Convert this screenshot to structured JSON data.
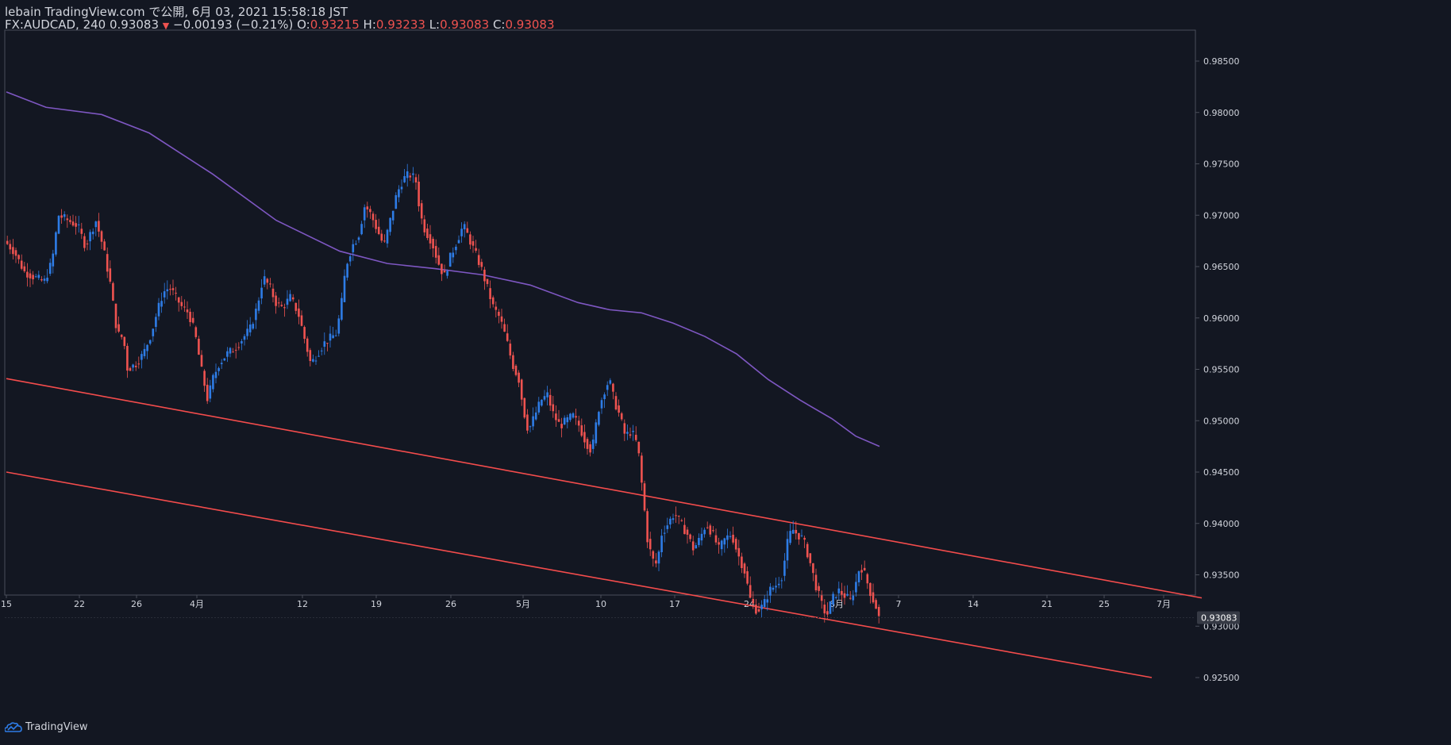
{
  "header": {
    "line1": "lebain TradingView.com で公開, 6月 03, 2021 15:58:18 JST",
    "symbol": "FX:AUDCAD, 240",
    "last": "0.93083",
    "arrow": "▼",
    "change": "−0.00193 (−0.21%)",
    "o_label": "O:",
    "o_value": "0.93215",
    "h_label": "H:",
    "h_value": "0.93233",
    "l_label": "L:",
    "l_value": "0.93083",
    "c_label": "C:",
    "c_value": "0.93083"
  },
  "footer": {
    "brand": "TradingView"
  },
  "colors": {
    "background": "#131722",
    "up": "#2e7ce6",
    "down": "#ef5350",
    "ma": "#7e57c2",
    "channel": "#f44c4c",
    "text": "#d1d4dc",
    "axis": "#4a4e59"
  },
  "chart_data": {
    "type": "candlestick",
    "symbol": "FX:AUDCAD",
    "interval": "240",
    "ylim": [
      0.925,
      0.9885
    ],
    "y_ticks": [
      "0.98500",
      "0.98000",
      "0.97500",
      "0.97000",
      "0.96500",
      "0.96000",
      "0.95500",
      "0.95000",
      "0.94500",
      "0.94000",
      "0.93500",
      "0.93000",
      "0.92500"
    ],
    "x_ticks": [
      "15",
      "22",
      "26",
      "4月",
      "12",
      "19",
      "26",
      "5月",
      "10",
      "17",
      "24",
      "6月",
      "7",
      "14",
      "21",
      "25",
      "7月"
    ],
    "last_price_label": "0.93083",
    "last_price": 0.93083,
    "price_path": [
      [
        0,
        0.9675
      ],
      [
        12,
        0.9665
      ],
      [
        25,
        0.9645
      ],
      [
        37,
        0.964
      ],
      [
        50,
        0.9635
      ],
      [
        60,
        0.9655
      ],
      [
        68,
        0.97
      ],
      [
        80,
        0.9695
      ],
      [
        92,
        0.969
      ],
      [
        102,
        0.967
      ],
      [
        115,
        0.9695
      ],
      [
        124,
        0.967
      ],
      [
        133,
        0.9635
      ],
      [
        142,
        0.9585
      ],
      [
        150,
        0.958
      ],
      [
        155,
        0.955
      ],
      [
        165,
        0.9555
      ],
      [
        175,
        0.9565
      ],
      [
        185,
        0.9585
      ],
      [
        192,
        0.9605
      ],
      [
        200,
        0.9625
      ],
      [
        208,
        0.963
      ],
      [
        216,
        0.962
      ],
      [
        224,
        0.961
      ],
      [
        232,
        0.9605
      ],
      [
        240,
        0.9585
      ],
      [
        248,
        0.955
      ],
      [
        256,
        0.952
      ],
      [
        262,
        0.954
      ],
      [
        270,
        0.9555
      ],
      [
        280,
        0.9565
      ],
      [
        290,
        0.957
      ],
      [
        300,
        0.958
      ],
      [
        310,
        0.959
      ],
      [
        318,
        0.961
      ],
      [
        326,
        0.964
      ],
      [
        334,
        0.963
      ],
      [
        342,
        0.9615
      ],
      [
        350,
        0.961
      ],
      [
        360,
        0.962
      ],
      [
        370,
        0.9605
      ],
      [
        378,
        0.958
      ],
      [
        386,
        0.9555
      ],
      [
        394,
        0.9565
      ],
      [
        402,
        0.9575
      ],
      [
        410,
        0.958
      ],
      [
        418,
        0.9585
      ],
      [
        424,
        0.961
      ],
      [
        430,
        0.965
      ],
      [
        438,
        0.967
      ],
      [
        446,
        0.968
      ],
      [
        454,
        0.971
      ],
      [
        462,
        0.97
      ],
      [
        470,
        0.9685
      ],
      [
        478,
        0.967
      ],
      [
        486,
        0.9695
      ],
      [
        494,
        0.972
      ],
      [
        502,
        0.9735
      ],
      [
        510,
        0.974
      ],
      [
        518,
        0.9735
      ],
      [
        524,
        0.97
      ],
      [
        530,
        0.9685
      ],
      [
        538,
        0.9675
      ],
      [
        546,
        0.9655
      ],
      [
        554,
        0.964
      ],
      [
        562,
        0.966
      ],
      [
        570,
        0.9675
      ],
      [
        578,
        0.969
      ],
      [
        584,
        0.968
      ],
      [
        592,
        0.9665
      ],
      [
        600,
        0.965
      ],
      [
        608,
        0.963
      ],
      [
        616,
        0.961
      ],
      [
        624,
        0.96
      ],
      [
        632,
        0.958
      ],
      [
        640,
        0.9555
      ],
      [
        648,
        0.954
      ],
      [
        654,
        0.951
      ],
      [
        660,
        0.949
      ],
      [
        668,
        0.9505
      ],
      [
        676,
        0.952
      ],
      [
        684,
        0.9525
      ],
      [
        692,
        0.9505
      ],
      [
        700,
        0.9495
      ],
      [
        708,
        0.95
      ],
      [
        716,
        0.9505
      ],
      [
        724,
        0.9495
      ],
      [
        732,
        0.948
      ],
      [
        740,
        0.947
      ],
      [
        748,
        0.951
      ],
      [
        756,
        0.953
      ],
      [
        762,
        0.954
      ],
      [
        768,
        0.952
      ],
      [
        775,
        0.9505
      ],
      [
        782,
        0.9485
      ],
      [
        790,
        0.949
      ],
      [
        798,
        0.9475
      ],
      [
        804,
        0.943
      ],
      [
        810,
        0.9385
      ],
      [
        816,
        0.9365
      ],
      [
        822,
        0.936
      ],
      [
        828,
        0.939
      ],
      [
        836,
        0.94
      ],
      [
        844,
        0.941
      ],
      [
        852,
        0.94
      ],
      [
        860,
        0.939
      ],
      [
        868,
        0.9375
      ],
      [
        876,
        0.9385
      ],
      [
        884,
        0.94
      ],
      [
        892,
        0.939
      ],
      [
        900,
        0.9375
      ],
      [
        908,
        0.9385
      ],
      [
        916,
        0.939
      ],
      [
        924,
        0.937
      ],
      [
        932,
        0.9355
      ],
      [
        940,
        0.9325
      ],
      [
        948,
        0.9315
      ],
      [
        956,
        0.932
      ],
      [
        964,
        0.9335
      ],
      [
        972,
        0.934
      ],
      [
        980,
        0.935
      ],
      [
        986,
        0.938
      ],
      [
        992,
        0.9395
      ],
      [
        998,
        0.939
      ],
      [
        1006,
        0.9385
      ],
      [
        1014,
        0.9365
      ],
      [
        1022,
        0.934
      ],
      [
        1030,
        0.932
      ],
      [
        1036,
        0.931
      ],
      [
        1042,
        0.9325
      ],
      [
        1050,
        0.9335
      ],
      [
        1058,
        0.933
      ],
      [
        1066,
        0.9325
      ],
      [
        1072,
        0.934
      ],
      [
        1078,
        0.936
      ],
      [
        1084,
        0.935
      ],
      [
        1092,
        0.933
      ],
      [
        1100,
        0.9315
      ],
      [
        1101,
        0.93083
      ]
    ],
    "ma_path": [
      [
        0,
        0.982
      ],
      [
        50,
        0.9805
      ],
      [
        120,
        0.9798
      ],
      [
        180,
        0.978
      ],
      [
        260,
        0.974
      ],
      [
        340,
        0.9695
      ],
      [
        420,
        0.9665
      ],
      [
        480,
        0.9653
      ],
      [
        540,
        0.9648
      ],
      [
        600,
        0.9642
      ],
      [
        660,
        0.9632
      ],
      [
        720,
        0.9615
      ],
      [
        760,
        0.9608
      ],
      [
        800,
        0.9605
      ],
      [
        840,
        0.9595
      ],
      [
        880,
        0.9582
      ],
      [
        920,
        0.9565
      ],
      [
        960,
        0.954
      ],
      [
        1000,
        0.952
      ],
      [
        1040,
        0.9502
      ],
      [
        1070,
        0.9485
      ],
      [
        1100,
        0.9475
      ]
    ],
    "channel_upper": [
      [
        0,
        0.9541
      ],
      [
        1506,
        0.93275
      ]
    ],
    "channel_lower": [
      [
        0,
        0.945
      ],
      [
        1443,
        0.925
      ]
    ]
  }
}
